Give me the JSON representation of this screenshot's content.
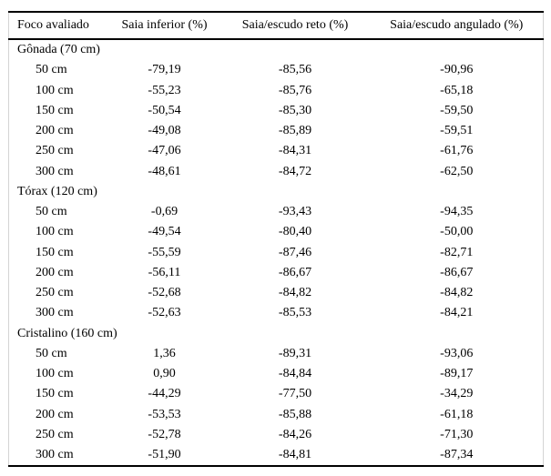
{
  "chart_data": {
    "type": "table",
    "title": "",
    "columns": [
      "Foco avaliado",
      "Saia inferior (%)",
      "Saia/escudo reto (%)",
      "Saia/escudo angulado (%)"
    ],
    "sections": [
      {
        "label": "Gônada (70 cm)",
        "rows": [
          {
            "foco": "50 cm",
            "values": [
              "-79,19",
              "-85,56",
              "-90,96"
            ]
          },
          {
            "foco": "100 cm",
            "values": [
              "-55,23",
              "-85,76",
              "-65,18"
            ]
          },
          {
            "foco": "150 cm",
            "values": [
              "-50,54",
              "-85,30",
              "-59,50"
            ]
          },
          {
            "foco": "200 cm",
            "values": [
              "-49,08",
              "-85,89",
              "-59,51"
            ]
          },
          {
            "foco": "250 cm",
            "values": [
              "-47,06",
              "-84,31",
              "-61,76"
            ]
          },
          {
            "foco": "300 cm",
            "values": [
              "-48,61",
              "-84,72",
              "-62,50"
            ]
          }
        ]
      },
      {
        "label": "Tórax (120 cm)",
        "rows": [
          {
            "foco": "50 cm",
            "values": [
              "-0,69",
              "-93,43",
              "-94,35"
            ]
          },
          {
            "foco": "100 cm",
            "values": [
              "-49,54",
              "-80,40",
              "-50,00"
            ]
          },
          {
            "foco": "150 cm",
            "values": [
              "-55,59",
              "-87,46",
              "-82,71"
            ]
          },
          {
            "foco": "200 cm",
            "values": [
              "-56,11",
              "-86,67",
              "-86,67"
            ]
          },
          {
            "foco": "250 cm",
            "values": [
              "-52,68",
              "-84,82",
              "-84,82"
            ]
          },
          {
            "foco": "300 cm",
            "values": [
              "-52,63",
              "-85,53",
              "-84,21"
            ]
          }
        ]
      },
      {
        "label": "Cristalino (160 cm)",
        "rows": [
          {
            "foco": "50 cm",
            "values": [
              "1,36",
              "-89,31",
              "-93,06"
            ]
          },
          {
            "foco": "100 cm",
            "values": [
              "0,90",
              "-84,84",
              "-89,17"
            ]
          },
          {
            "foco": "150 cm",
            "values": [
              "-44,29",
              "-77,50",
              "-34,29"
            ]
          },
          {
            "foco": "200 cm",
            "values": [
              "-53,53",
              "-85,88",
              "-61,18"
            ]
          },
          {
            "foco": "250 cm",
            "values": [
              "-52,78",
              "-84,26",
              "-71,30"
            ]
          },
          {
            "foco": "300 cm",
            "values": [
              "-51,90",
              "-84,81",
              "-87,34"
            ]
          }
        ]
      }
    ],
    "layout_hints": {
      "grid": "horizontal rules only (top, below header, bottom)",
      "decimal_separator": ",",
      "value_columns_alignment": "center",
      "rule_color": "#000000",
      "side_border_color": "#d4d4d4"
    }
  }
}
